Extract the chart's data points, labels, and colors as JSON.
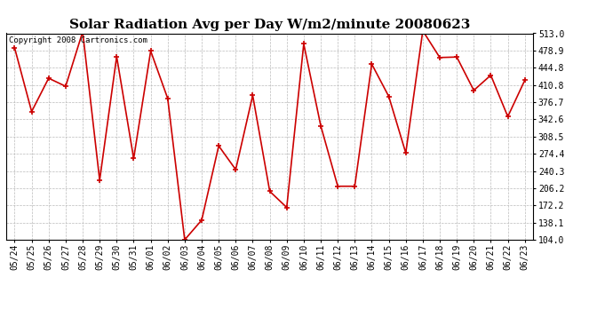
{
  "title": "Solar Radiation Avg per Day W/m2/minute 20080623",
  "copyright": "Copyright 2008 Cartronics.com",
  "labels": [
    "05/24",
    "05/25",
    "05/26",
    "05/27",
    "05/28",
    "05/29",
    "05/30",
    "05/31",
    "06/01",
    "06/02",
    "06/03",
    "06/04",
    "06/05",
    "06/06",
    "06/07",
    "06/08",
    "06/09",
    "06/10",
    "06/11",
    "06/12",
    "06/13",
    "06/14",
    "06/15",
    "06/16",
    "06/17",
    "06/18",
    "06/19",
    "06/20",
    "06/21",
    "06/22",
    "06/23"
  ],
  "values": [
    484,
    358,
    424,
    408,
    516,
    222,
    467,
    265,
    478,
    384,
    104,
    143,
    290,
    243,
    390,
    200,
    168,
    492,
    330,
    210,
    210,
    452,
    388,
    276,
    518,
    465,
    466,
    400,
    430,
    348,
    420
  ],
  "line_color": "#cc0000",
  "marker_color": "#cc0000",
  "bg_color": "#ffffff",
  "plot_bg_color": "#ffffff",
  "grid_color": "#bbbbbb",
  "title_fontsize": 11,
  "copyright_fontsize": 6.5,
  "tick_fontsize": 7,
  "ymin": 104.0,
  "ymax": 513.0,
  "yticks": [
    104.0,
    138.1,
    172.2,
    206.2,
    240.3,
    274.4,
    308.5,
    342.6,
    376.7,
    410.8,
    444.8,
    478.9,
    513.0
  ]
}
